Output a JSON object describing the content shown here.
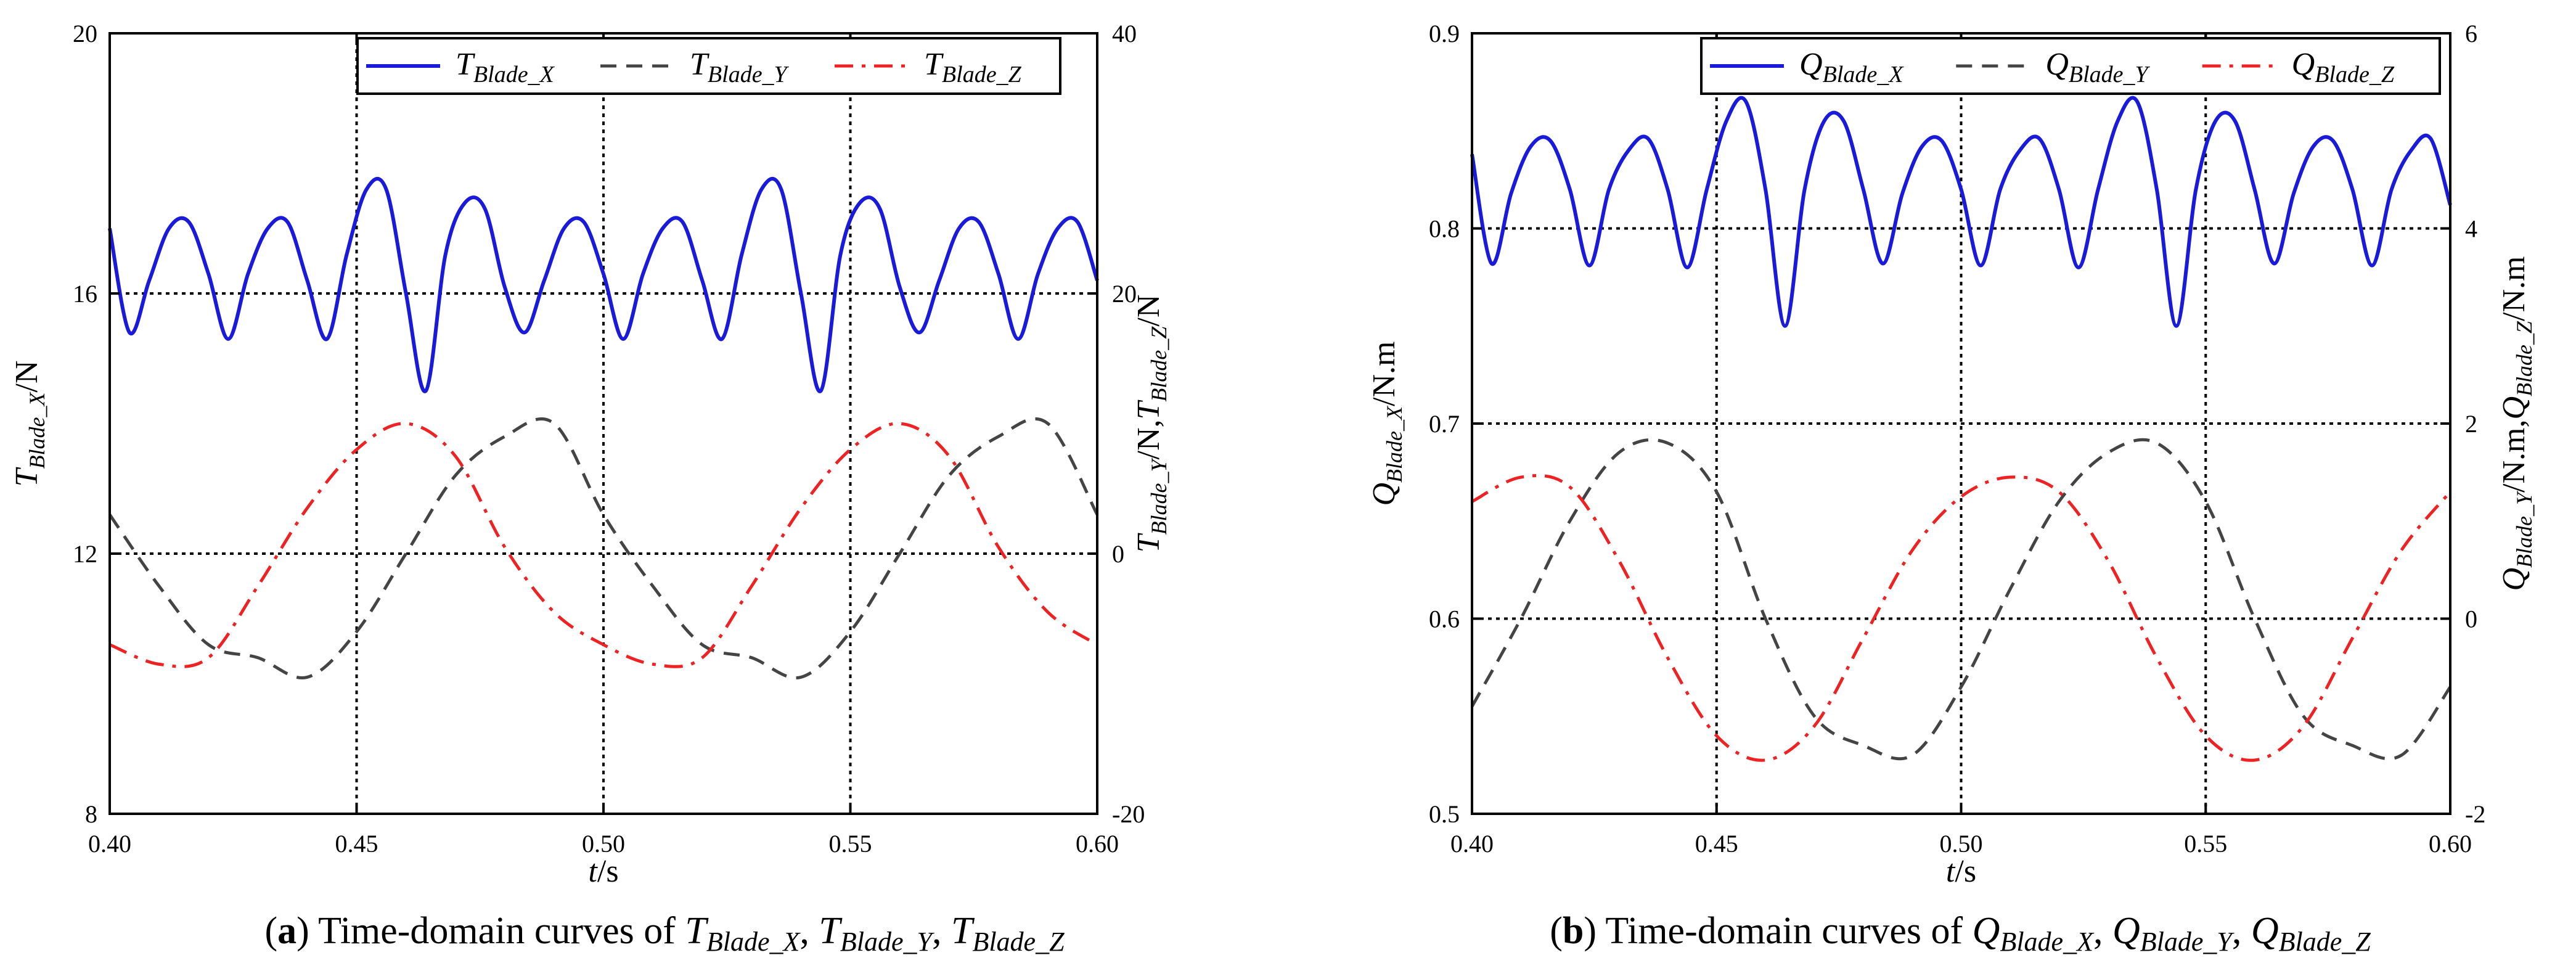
{
  "chart_data": [
    {
      "type": "line",
      "panel": "a",
      "caption": {
        "label": "a",
        "text": "Time-domain curves of",
        "vars": [
          {
            "main": "T",
            "sub": "Blade_X"
          },
          {
            "main": "T",
            "sub": "Blade_Y"
          },
          {
            "main": "T",
            "sub": "Blade_Z"
          }
        ]
      },
      "xlabel": {
        "main": "t",
        "rest": "/s"
      },
      "ylabel_left": {
        "main": "T",
        "sub": "Blade_X",
        "rest": "/N"
      },
      "ylabel_right": {
        "text": "T_Blade_Y/N, T_Blade_Z/N",
        "main1": "T",
        "sub1": "Blade_Y",
        "rest1": "/N,",
        "main2": "T",
        "sub2": "Blade_Z",
        "rest2": "/N"
      },
      "xlim": [
        0.4,
        0.6
      ],
      "ylim_left": [
        8,
        20
      ],
      "ylim_right": [
        -20,
        40
      ],
      "xticks": [
        "0.40",
        "0.45",
        "0.50",
        "0.55",
        "0.60"
      ],
      "yticks_left": [
        "8",
        "12",
        "16",
        "20"
      ],
      "yticks_right": [
        "-20",
        "0",
        "20",
        "40"
      ],
      "grid": {
        "x": [
          0.45,
          0.5,
          0.55
        ],
        "y_left": [
          12,
          16
        ]
      },
      "legend": {
        "placement": "top-right"
      },
      "series": [
        {
          "name": "T_Blade_X",
          "legend_main": "T",
          "legend_sub": "Blade_X",
          "color": "#1a1adb",
          "dash": "solid",
          "axis": "left",
          "x": [
            0.4,
            0.404,
            0.408,
            0.412,
            0.416,
            0.42,
            0.424,
            0.428,
            0.432,
            0.436,
            0.44,
            0.444,
            0.448,
            0.452,
            0.456,
            0.46,
            0.464,
            0.468,
            0.472,
            0.476,
            0.48,
            0.484,
            0.488,
            0.492,
            0.496,
            0.5,
            0.504,
            0.508,
            0.512,
            0.516,
            0.52,
            0.524,
            0.528,
            0.532,
            0.536,
            0.54,
            0.544,
            0.548,
            0.552,
            0.556,
            0.56,
            0.564,
            0.568,
            0.572,
            0.576,
            0.58,
            0.584,
            0.588,
            0.592,
            0.596,
            0.6
          ],
          "y": [
            17.0,
            15.4,
            16.2,
            17.0,
            17.1,
            16.3,
            15.3,
            16.3,
            17.0,
            17.1,
            16.2,
            15.3,
            16.6,
            17.6,
            17.6,
            16.0,
            14.5,
            16.6,
            17.4,
            17.3,
            16.1,
            15.4,
            16.2,
            17.0,
            17.1,
            16.3,
            15.3,
            16.3,
            17.0,
            17.1,
            16.2,
            15.3,
            16.6,
            17.6,
            17.6,
            16.0,
            14.5,
            16.6,
            17.4,
            17.3,
            16.1,
            15.4,
            16.2,
            17.0,
            17.1,
            16.3,
            15.3,
            16.3,
            17.0,
            17.1,
            16.2
          ]
        },
        {
          "name": "T_Blade_Y",
          "legend_main": "T",
          "legend_sub": "Blade_Y",
          "color": "#444444",
          "dash": "dashed",
          "axis": "right",
          "x": [
            0.4,
            0.41,
            0.42,
            0.43,
            0.44,
            0.45,
            0.46,
            0.47,
            0.48,
            0.49,
            0.5,
            0.51,
            0.52,
            0.53,
            0.54,
            0.55,
            0.56,
            0.57,
            0.58,
            0.59,
            0.6
          ],
          "y": [
            3.0,
            -2.5,
            -7.0,
            -8.0,
            -9.5,
            -6.0,
            0.0,
            6.0,
            9.0,
            10.0,
            3.0,
            -2.5,
            -7.0,
            -8.0,
            -9.5,
            -6.0,
            0.0,
            6.0,
            9.0,
            10.0,
            3.0
          ]
        },
        {
          "name": "T_Blade_Z",
          "legend_main": "T",
          "legend_sub": "Blade_Z",
          "color": "#ee2222",
          "dash": "dashdot",
          "axis": "right",
          "x": [
            0.4,
            0.41,
            0.42,
            0.43,
            0.44,
            0.45,
            0.46,
            0.47,
            0.48,
            0.49,
            0.5,
            0.51,
            0.52,
            0.53,
            0.54,
            0.55,
            0.56,
            0.57,
            0.58,
            0.59,
            0.6
          ],
          "y": [
            -7.0,
            -8.5,
            -8.0,
            -2.5,
            3.5,
            8.0,
            10.0,
            7.5,
            0.5,
            -4.5,
            -7.0,
            -8.5,
            -8.0,
            -2.5,
            3.5,
            8.0,
            10.0,
            7.5,
            0.5,
            -4.5,
            -7.0
          ]
        }
      ]
    },
    {
      "type": "line",
      "panel": "b",
      "caption": {
        "label": "b",
        "text": "Time-domain curves of",
        "vars": [
          {
            "main": "Q",
            "sub": "Blade_X"
          },
          {
            "main": "Q",
            "sub": "Blade_Y"
          },
          {
            "main": "Q",
            "sub": "Blade_Z"
          }
        ]
      },
      "xlabel": {
        "main": "t",
        "rest": "/s"
      },
      "ylabel_left": {
        "main": "Q",
        "sub": "Blade_X",
        "rest": "/N.m"
      },
      "ylabel_right": {
        "text": "Q_Blade_Y/N.m, Q_Blade_Z/N.m",
        "main1": "Q",
        "sub1": "Blade_Y",
        "rest1": "/N.m,",
        "main2": "Q",
        "sub2": "Blade_Z",
        "rest2": "/N.m"
      },
      "xlim": [
        0.4,
        0.6
      ],
      "ylim_left": [
        0.5,
        0.9
      ],
      "ylim_right": [
        -2,
        6
      ],
      "xticks": [
        "0.40",
        "0.45",
        "0.50",
        "0.55",
        "0.60"
      ],
      "yticks_left": [
        "0.5",
        "0.6",
        "0.7",
        "0.8",
        "0.9"
      ],
      "yticks_right": [
        "-2",
        "0",
        "2",
        "4",
        "6"
      ],
      "grid": {
        "x": [
          0.45,
          0.5,
          0.55
        ],
        "y_left": [
          0.6,
          0.7,
          0.8
        ]
      },
      "legend": {
        "placement": "top-right"
      },
      "series": [
        {
          "name": "Q_Blade_X",
          "legend_main": "Q",
          "legend_sub": "Blade_X",
          "color": "#1a1adb",
          "dash": "solid",
          "axis": "left",
          "x": [
            0.4,
            0.404,
            0.408,
            0.412,
            0.416,
            0.42,
            0.424,
            0.428,
            0.432,
            0.436,
            0.44,
            0.444,
            0.448,
            0.452,
            0.456,
            0.46,
            0.464,
            0.468,
            0.472,
            0.476,
            0.48,
            0.484,
            0.488,
            0.492,
            0.496,
            0.5,
            0.504,
            0.508,
            0.512,
            0.516,
            0.52,
            0.524,
            0.528,
            0.532,
            0.536,
            0.54,
            0.544,
            0.548,
            0.552,
            0.556,
            0.56,
            0.564,
            0.568,
            0.572,
            0.576,
            0.58,
            0.584,
            0.588,
            0.592,
            0.596,
            0.6
          ],
          "y": [
            0.838,
            0.782,
            0.818,
            0.842,
            0.845,
            0.82,
            0.781,
            0.82,
            0.84,
            0.846,
            0.82,
            0.78,
            0.82,
            0.855,
            0.865,
            0.82,
            0.75,
            0.82,
            0.855,
            0.855,
            0.82,
            0.782,
            0.818,
            0.842,
            0.845,
            0.82,
            0.781,
            0.82,
            0.84,
            0.846,
            0.82,
            0.78,
            0.82,
            0.855,
            0.865,
            0.82,
            0.75,
            0.82,
            0.855,
            0.855,
            0.82,
            0.782,
            0.818,
            0.842,
            0.845,
            0.82,
            0.781,
            0.82,
            0.84,
            0.846,
            0.812
          ]
        },
        {
          "name": "Q_Blade_Y",
          "legend_main": "Q",
          "legend_sub": "Blade_Y",
          "color": "#444444",
          "dash": "dashed",
          "axis": "right",
          "x": [
            0.4,
            0.41,
            0.42,
            0.43,
            0.44,
            0.45,
            0.46,
            0.47,
            0.48,
            0.49,
            0.5,
            0.51,
            0.52,
            0.53,
            0.54,
            0.55,
            0.56,
            0.57,
            0.58,
            0.59,
            0.6
          ],
          "y": [
            -0.9,
            0.0,
            1.0,
            1.7,
            1.8,
            1.3,
            0.0,
            -1.0,
            -1.3,
            -1.4,
            -0.7,
            0.3,
            1.2,
            1.7,
            1.8,
            1.2,
            0.0,
            -1.0,
            -1.3,
            -1.4,
            -0.7
          ]
        },
        {
          "name": "Q_Blade_Z",
          "legend_main": "Q",
          "legend_sub": "Blade_Z",
          "color": "#ee2222",
          "dash": "dashdot",
          "axis": "right",
          "x": [
            0.4,
            0.41,
            0.42,
            0.43,
            0.44,
            0.45,
            0.46,
            0.47,
            0.48,
            0.49,
            0.5,
            0.51,
            0.52,
            0.53,
            0.54,
            0.55,
            0.56,
            0.57,
            0.58,
            0.59,
            0.6
          ],
          "y": [
            1.2,
            1.45,
            1.35,
            0.6,
            -0.4,
            -1.2,
            -1.45,
            -1.1,
            -0.2,
            0.7,
            1.25,
            1.45,
            1.3,
            0.6,
            -0.4,
            -1.2,
            -1.45,
            -1.1,
            -0.2,
            0.7,
            1.3
          ]
        }
      ]
    }
  ]
}
